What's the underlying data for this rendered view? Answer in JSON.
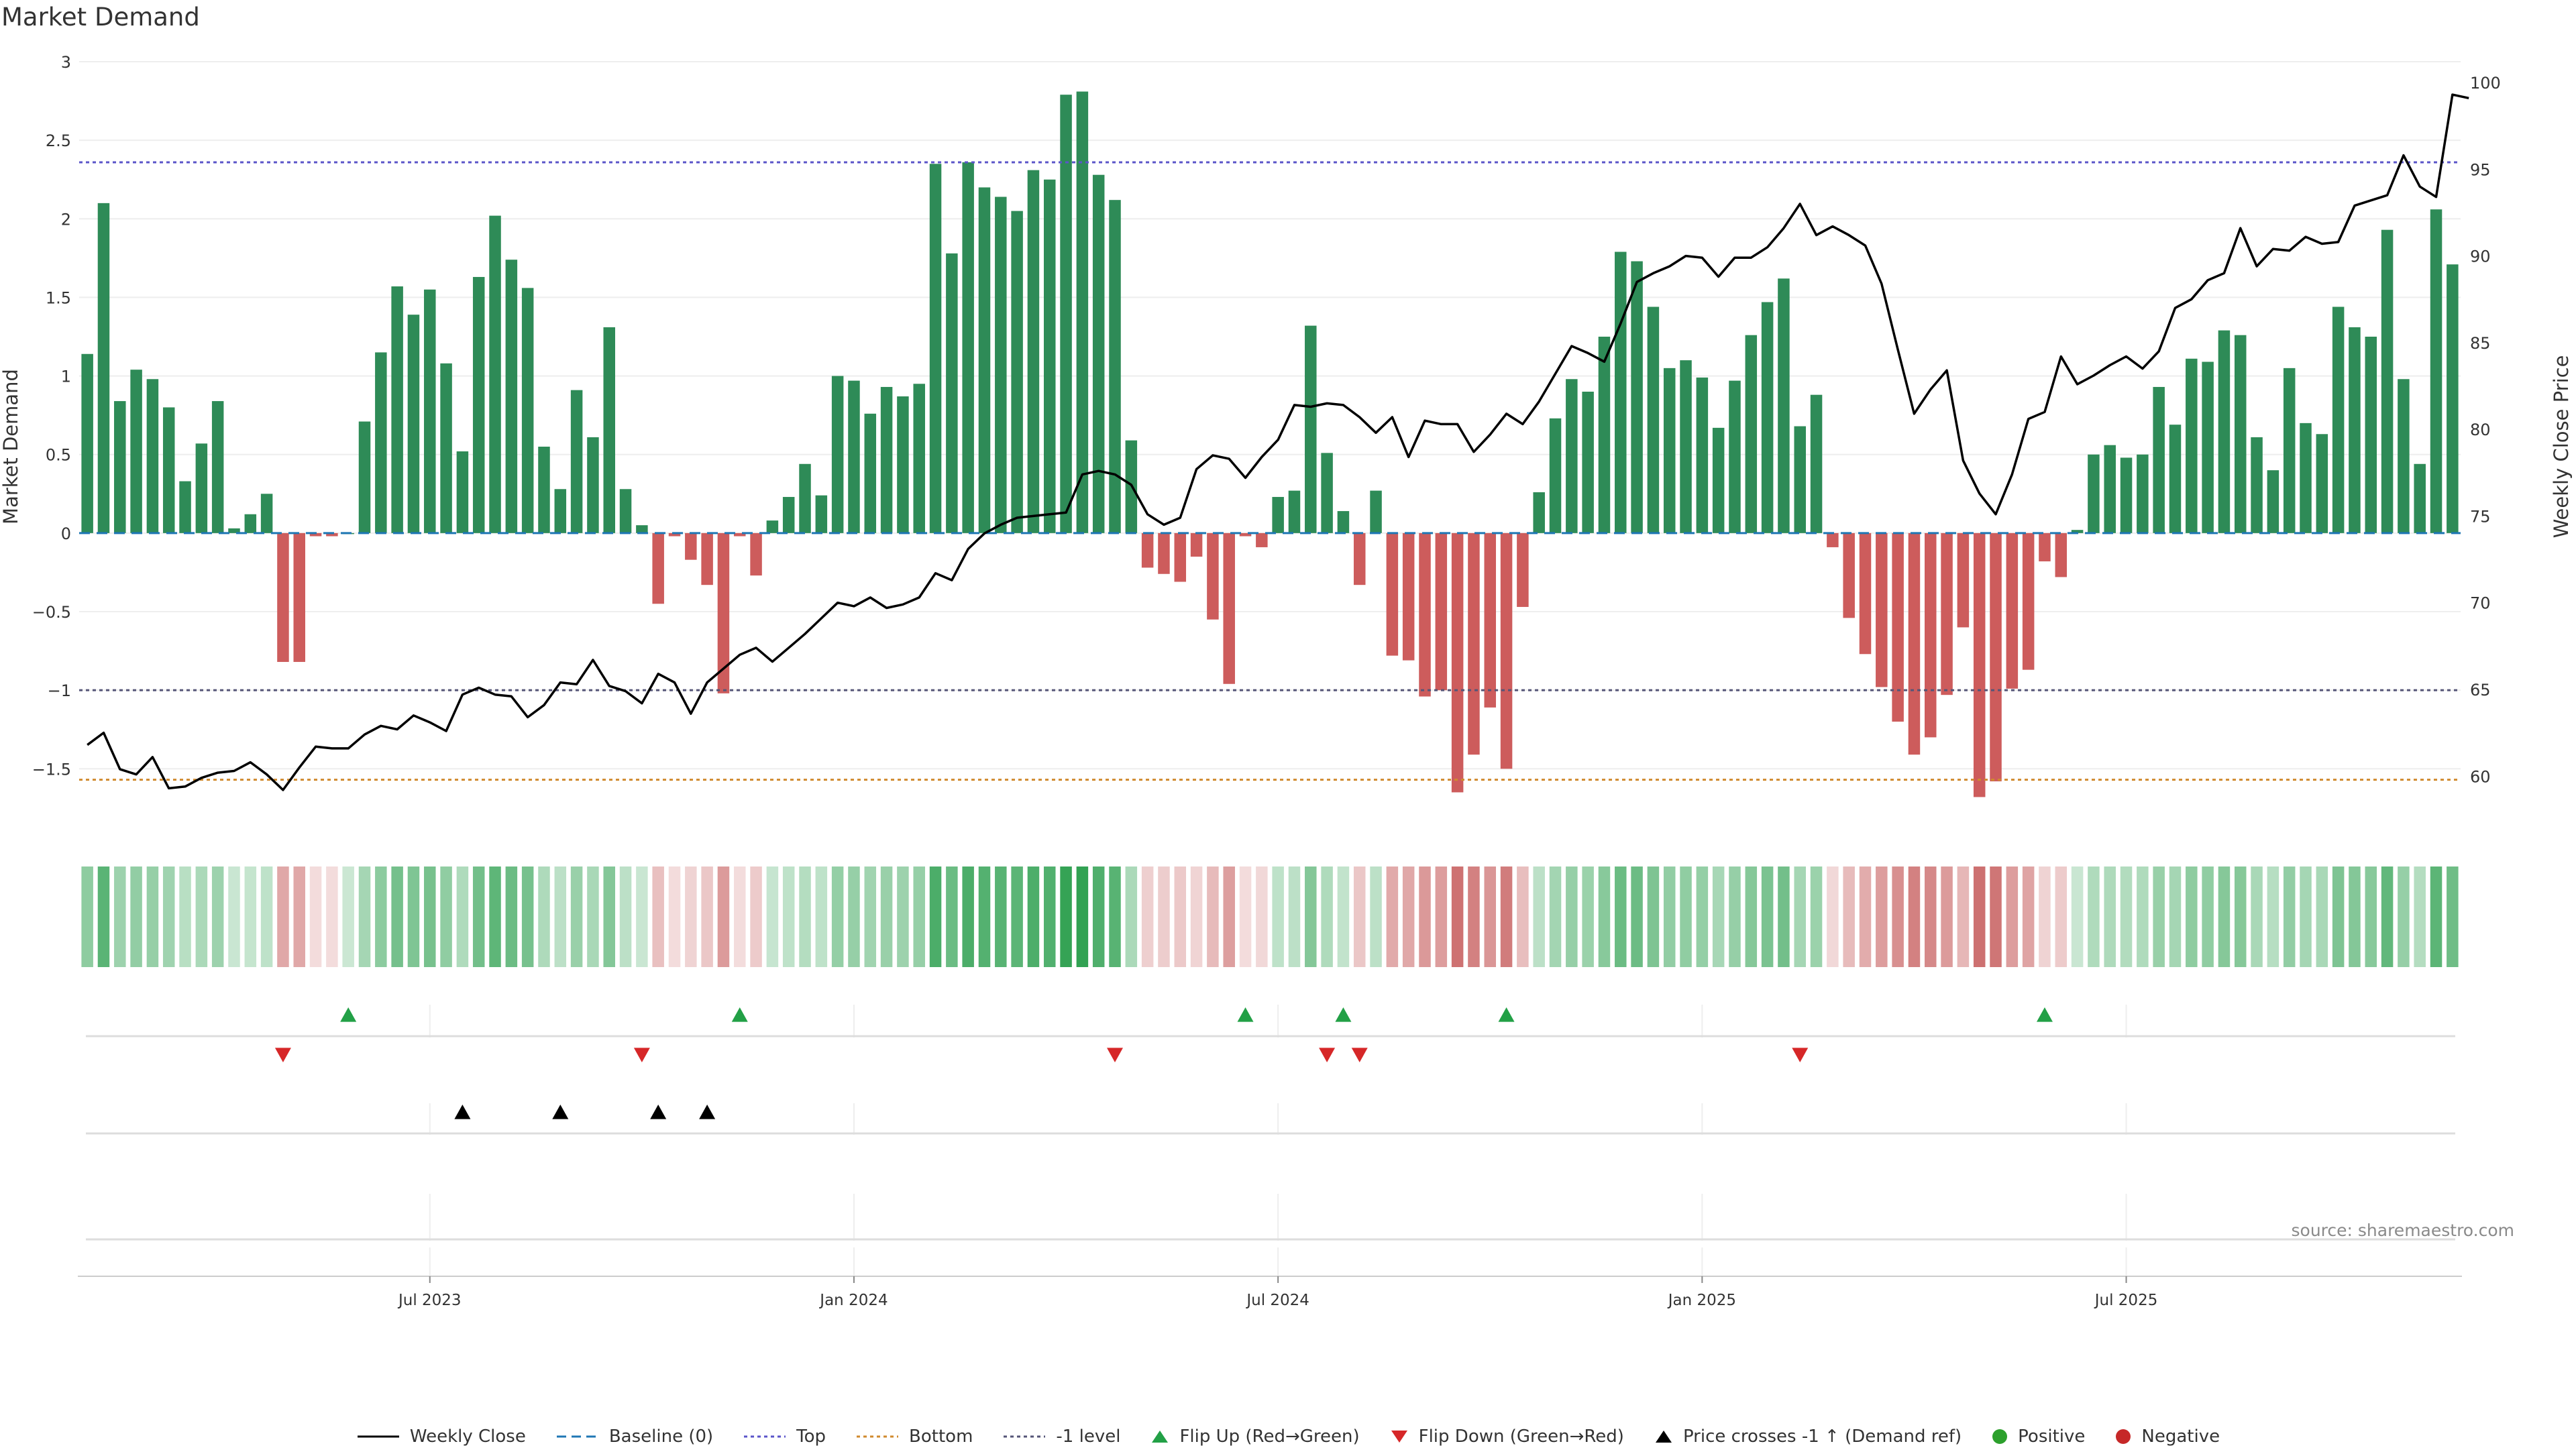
{
  "title": "Market Demand",
  "source": "source: sharemaestro.com",
  "colors": {
    "positive_bar": "#2e8b57",
    "negative_bar": "#cd5c5c",
    "close_line": "#000000",
    "baseline": "#1f77b4",
    "top_line": "#5b55c9",
    "bottom_line": "#d08a2e",
    "minus1_line": "#555577",
    "flip_up": "#22a046",
    "flip_down": "#d62728",
    "cross": "#000000",
    "positive_dot": "#2ca02c",
    "negative_dot": "#c62828"
  },
  "chart_data": {
    "type": "bar",
    "title": "Market Demand",
    "ylabel": "Market Demand",
    "y2label": "Weekly Close Price",
    "ylim": [
      -1.9,
      3
    ],
    "y2lim": [
      56.8,
      101.2
    ],
    "yticks": [
      3,
      2.5,
      2,
      1.5,
      1,
      0.5,
      0,
      -0.5,
      -1,
      -1.5
    ],
    "ytick_labels": [
      "3",
      "2.5",
      "2",
      "1.5",
      "1",
      "0.5",
      "0",
      "−0.5",
      "−1",
      "−1.5"
    ],
    "y2ticks": [
      100,
      95,
      90,
      85,
      80,
      75,
      70,
      65,
      60
    ],
    "xtick_labels": [
      {
        "label": "Jul 2023",
        "week": 21.5
      },
      {
        "label": "Jan 2024",
        "week": 47.5
      },
      {
        "label": "Jul 2024",
        "week": 73.5
      },
      {
        "label": "Jan 2025",
        "week": 99.5
      },
      {
        "label": "Jul 2025",
        "week": 125.5
      }
    ],
    "reference_lines": {
      "baseline": 0,
      "top": 2.36,
      "bottom": -1.57,
      "minus_one": -1
    },
    "series": [
      {
        "name": "Market Demand",
        "type": "bar",
        "values": [
          1.14,
          2.1,
          0.84,
          1.04,
          0.98,
          0.8,
          0.33,
          0.57,
          0.84,
          0.03,
          0.12,
          0.25,
          -0.82,
          -0.82,
          -0.02,
          -0.02,
          0,
          0.71,
          1.15,
          1.57,
          1.39,
          1.55,
          1.08,
          0.52,
          1.63,
          2.02,
          1.74,
          1.56,
          0.55,
          0.28,
          0.91,
          0.61,
          1.31,
          0.28,
          0.05,
          -0.45,
          -0.02,
          -0.17,
          -0.33,
          -1.02,
          -0.02,
          -0.27,
          0.08,
          0.23,
          0.44,
          0.24,
          1.0,
          0.97,
          0.76,
          0.93,
          0.87,
          0.95,
          2.35,
          1.78,
          2.36,
          2.2,
          2.14,
          2.05,
          2.31,
          2.25,
          2.79,
          2.81,
          2.28,
          2.12,
          0.59,
          -0.22,
          -0.26,
          -0.31,
          -0.15,
          -0.55,
          -0.96,
          -0.02,
          -0.09,
          0.23,
          0.27,
          1.32,
          0.51,
          0.14,
          -0.33,
          0.27,
          -0.78,
          -0.81,
          -1.04,
          -1.0,
          -1.65,
          -1.41,
          -1.11,
          -1.5,
          -0.47,
          0.26,
          0.73,
          0.98,
          0.9,
          1.25,
          1.79,
          1.73,
          1.44,
          1.05,
          1.1,
          0.99,
          0.67,
          0.97,
          1.26,
          1.47,
          1.62,
          0.68,
          0.88,
          -0.09,
          -0.54,
          -0.77,
          -0.98,
          -1.2,
          -1.41,
          -1.3,
          -1.03,
          -0.6,
          -1.68,
          -1.58,
          -0.99,
          -0.87,
          -0.18,
          -0.28,
          0.02,
          0.5,
          0.56,
          0.48,
          0.5,
          0.93,
          0.69,
          1.11,
          1.09,
          1.29,
          1.26,
          0.61,
          0.4,
          1.05,
          0.7,
          0.63,
          1.44,
          1.31,
          1.25,
          1.93,
          0.98,
          0.44,
          2.06,
          1.71
        ]
      },
      {
        "name": "Weekly Close",
        "type": "line",
        "axis": "right",
        "values": [
          61.8,
          62.5,
          60.4,
          60.1,
          61.1,
          59.3,
          59.4,
          59.9,
          60.2,
          60.3,
          60.8,
          60.1,
          59.2,
          60.5,
          61.7,
          61.6,
          61.6,
          62.4,
          62.9,
          62.7,
          63.5,
          63.1,
          62.6,
          64.7,
          65.1,
          64.7,
          64.6,
          63.4,
          64.1,
          65.4,
          65.3,
          66.7,
          65.2,
          64.9,
          64.2,
          65.9,
          65.4,
          63.6,
          65.4,
          66.2,
          67.0,
          67.4,
          66.6,
          67.4,
          68.2,
          69.1,
          70.0,
          69.8,
          70.3,
          69.7,
          69.9,
          70.3,
          71.7,
          71.3,
          73.1,
          74.0,
          74.5,
          74.9,
          75.0,
          75.1,
          75.2,
          77.4,
          77.6,
          77.4,
          76.8,
          75.1,
          74.5,
          74.9,
          77.7,
          78.5,
          78.3,
          77.2,
          78.4,
          79.4,
          81.4,
          81.3,
          81.5,
          81.4,
          80.7,
          79.8,
          80.7,
          78.4,
          80.5,
          80.3,
          80.3,
          78.7,
          79.7,
          80.9,
          80.3,
          81.6,
          83.2,
          84.8,
          84.4,
          83.9,
          86.1,
          88.5,
          89.0,
          89.4,
          90.0,
          89.9,
          88.8,
          89.9,
          89.9,
          90.5,
          91.6,
          93.0,
          91.2,
          91.7,
          91.2,
          90.6,
          88.4,
          84.6,
          80.9,
          82.3,
          83.4,
          78.2,
          76.3,
          75.1,
          77.4,
          80.6,
          81.0,
          84.2,
          82.6,
          83.1,
          83.7,
          84.2,
          83.5,
          84.5,
          87.0,
          87.5,
          88.6,
          89.0,
          91.6,
          89.4,
          90.4,
          90.3,
          91.1,
          90.7,
          90.8,
          92.9,
          93.2,
          93.5,
          95.8,
          94.0,
          93.4,
          99.3,
          99.1
        ]
      }
    ],
    "markers": {
      "flip_up_weeks": [
        16,
        40,
        71,
        77,
        87,
        120
      ],
      "flip_down_weeks": [
        12,
        34,
        63,
        76,
        78,
        105
      ],
      "cross_weeks": [
        23,
        29,
        35,
        38
      ]
    },
    "strip": {
      "description_label": ""
    }
  },
  "legend": [
    {
      "key": "close",
      "label": "Weekly Close"
    },
    {
      "key": "baseline",
      "label": "Baseline (0)"
    },
    {
      "key": "top",
      "label": "Top"
    },
    {
      "key": "bottom",
      "label": "Bottom"
    },
    {
      "key": "minus1",
      "label": "-1 level"
    },
    {
      "key": "flip_up",
      "label": "Flip Up (Red→Green)"
    },
    {
      "key": "flip_down",
      "label": "Flip Down (Green→Red)"
    },
    {
      "key": "cross",
      "label": "Price crosses -1 ↑ (Demand ref)"
    },
    {
      "key": "positive",
      "label": "Positive"
    },
    {
      "key": "negative",
      "label": "Negative"
    }
  ]
}
